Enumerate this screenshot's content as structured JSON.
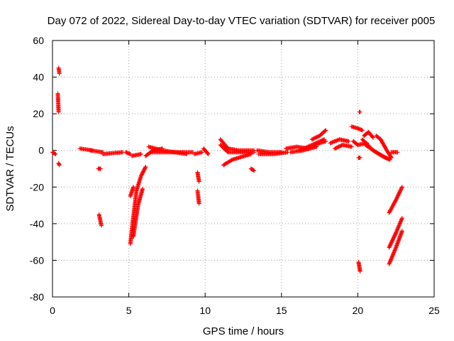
{
  "chart_data": {
    "type": "scatter",
    "title": "Day 072 of 2022, Sidereal Day-to-day VTEC variation (SDTVAR) for receiver p005",
    "xlabel": "GPS time / hours",
    "ylabel": "SDTVAR / TECUs",
    "xlim": [
      0,
      25
    ],
    "ylim": [
      -80,
      60
    ],
    "xticks": [
      0,
      5,
      10,
      15,
      20,
      25
    ],
    "yticks": [
      -80,
      -60,
      -40,
      -20,
      0,
      20,
      40,
      60
    ],
    "grid": true,
    "marker": "+",
    "color": "#ff0000",
    "series": [
      {
        "name": "SDTVAR",
        "segments": [
          {
            "x": [
              0.0,
              0.2
            ],
            "y": [
              -1,
              -2
            ]
          },
          {
            "x": [
              0.4,
              0.45
            ],
            "y": [
              45,
              42
            ]
          },
          {
            "x": [
              0.35,
              0.4
            ],
            "y": [
              31,
              21
            ]
          },
          {
            "x": [
              0.4,
              0.45
            ],
            "y": [
              -7,
              -8
            ]
          },
          {
            "x": [
              1.8,
              2.6
            ],
            "y": [
              1,
              0
            ]
          },
          {
            "x": [
              2.5,
              3.3
            ],
            "y": [
              0,
              -1
            ]
          },
          {
            "x": [
              3.0,
              3.15
            ],
            "y": [
              -10,
              -10
            ]
          },
          {
            "x": [
              3.05,
              3.2
            ],
            "y": [
              -35,
              -41
            ]
          },
          {
            "x": [
              3.3,
              4.6
            ],
            "y": [
              -2,
              -1
            ]
          },
          {
            "x": [
              4.8,
              5.1
            ],
            "y": [
              -1,
              -2
            ]
          },
          {
            "x": [
              5.2,
              5.8
            ],
            "y": [
              -3,
              -2
            ]
          },
          {
            "x": [
              5.1,
              5.3,
              5.5,
              5.8,
              6.1
            ],
            "y": [
              -51,
              -36,
              -22,
              -14,
              -9
            ]
          },
          {
            "x": [
              5.1,
              5.3
            ],
            "y": [
              -25,
              -20
            ]
          },
          {
            "x": [
              5.3,
              5.6,
              5.9
            ],
            "y": [
              -47,
              -30,
              -21
            ]
          },
          {
            "x": [
              6.1,
              6.6,
              7.2
            ],
            "y": [
              -3,
              0,
              1
            ]
          },
          {
            "x": [
              6.3,
              7.2,
              8.0,
              8.8
            ],
            "y": [
              2,
              0,
              -1,
              -2
            ]
          },
          {
            "x": [
              6.5,
              7.5,
              9.2
            ],
            "y": [
              -1,
              -1,
              -1
            ]
          },
          {
            "x": [
              9.5,
              9.6
            ],
            "y": [
              -12,
              -17
            ]
          },
          {
            "x": [
              9.5,
              9.6
            ],
            "y": [
              -22,
              -29
            ]
          },
          {
            "x": [
              9.3,
              9.8
            ],
            "y": [
              -2,
              -1
            ]
          },
          {
            "x": [
              9.9,
              10.2
            ],
            "y": [
              1,
              -2
            ]
          },
          {
            "x": [
              11.0,
              11.5,
              12.2,
              13.2
            ],
            "y": [
              6,
              1,
              0,
              0
            ]
          },
          {
            "x": [
              11.0,
              11.5,
              12.5,
              13.2
            ],
            "y": [
              3,
              -1,
              -1,
              -1
            ]
          },
          {
            "x": [
              11.2,
              11.8,
              12.6,
              13.0
            ],
            "y": [
              -8,
              -5,
              -3,
              -2
            ]
          },
          {
            "x": [
              13.0,
              13.2
            ],
            "y": [
              -10,
              -11
            ]
          },
          {
            "x": [
              13.4,
              14.2,
              15.0
            ],
            "y": [
              0,
              -1,
              -1
            ]
          },
          {
            "x": [
              13.5,
              14.5,
              15.4
            ],
            "y": [
              -2,
              -2,
              -1
            ]
          },
          {
            "x": [
              15.3,
              16.0,
              16.8
            ],
            "y": [
              1,
              2,
              1
            ]
          },
          {
            "x": [
              15.6,
              16.4,
              17.3
            ],
            "y": [
              -1,
              0,
              2
            ]
          },
          {
            "x": [
              16.2,
              17.0,
              17.8
            ],
            "y": [
              0,
              3,
              6
            ]
          },
          {
            "x": [
              17.0,
              17.5,
              17.9
            ],
            "y": [
              6,
              8,
              11
            ]
          },
          {
            "x": [
              17.0,
              17.5,
              17.9
            ],
            "y": [
              2,
              4,
              5
            ]
          },
          {
            "x": [
              18.2,
              18.8,
              19.4
            ],
            "y": [
              4,
              6,
              5
            ]
          },
          {
            "x": [
              18.5,
              19.0,
              19.6
            ],
            "y": [
              1,
              3,
              2
            ]
          },
          {
            "x": [
              19.6,
              20.0,
              20.3
            ],
            "y": [
              13,
              12,
              11
            ]
          },
          {
            "x": [
              19.7,
              20.0,
              20.6
            ],
            "y": [
              5,
              3,
              4
            ]
          },
          {
            "x": [
              20.4,
              20.7,
              21.0
            ],
            "y": [
              8,
              10,
              7
            ]
          },
          {
            "x": [
              20.3,
              21.0,
              21.6,
              22.1
            ],
            "y": [
              6,
              0,
              -3,
              -5
            ]
          },
          {
            "x": [
              20.5,
              21.2,
              21.8,
              22.1
            ],
            "y": [
              3,
              -1,
              -4,
              -5
            ]
          },
          {
            "x": [
              21.2,
              21.5,
              21.9,
              22.2
            ],
            "y": [
              8,
              6,
              0,
              -4
            ]
          },
          {
            "x": [
              22.2,
              22.6
            ],
            "y": [
              -1,
              -1
            ]
          },
          {
            "x": [
              20.1,
              20.15
            ],
            "y": [
              21,
              21
            ]
          },
          {
            "x": [
              20.05,
              20.15
            ],
            "y": [
              -4,
              -4
            ]
          },
          {
            "x": [
              20.05,
              20.15
            ],
            "y": [
              -61,
              -66
            ]
          },
          {
            "x": [
              22.05,
              22.5,
              22.9
            ],
            "y": [
              -34,
              -27,
              -20
            ]
          },
          {
            "x": [
              22.05,
              22.5,
              22.9
            ],
            "y": [
              -53,
              -45,
              -37
            ]
          },
          {
            "x": [
              22.05,
              22.5,
              22.9
            ],
            "y": [
              -62,
              -53,
              -44
            ]
          }
        ]
      }
    ]
  }
}
